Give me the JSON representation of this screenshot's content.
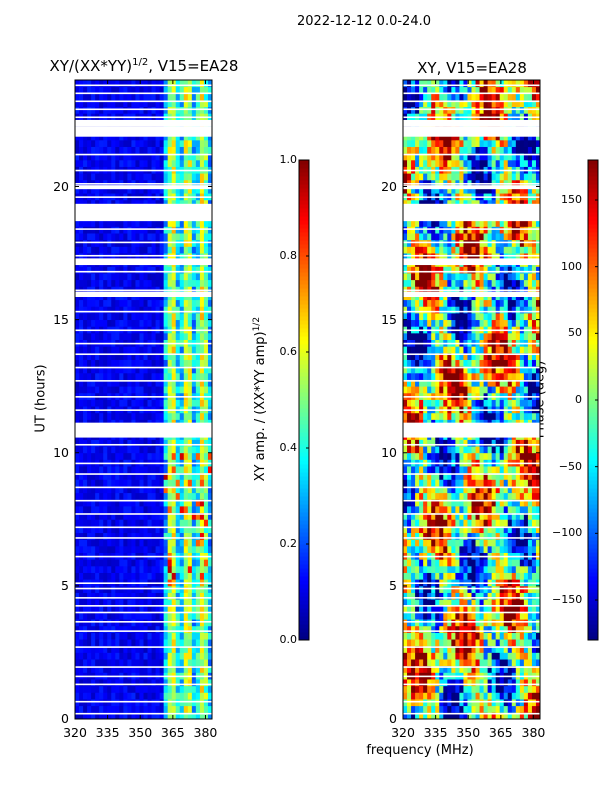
{
  "figure": {
    "suptitle": "2022-12-12 0.0-24.0",
    "xlabel_shared": "frequency (MHz)"
  },
  "chart_data": [
    {
      "type": "heatmap",
      "title": "XY/(XX*YY)",
      "title_exponent": "1/2",
      "title_suffix": ", V15=EA28",
      "xlabel": "",
      "ylabel": "UT (hours)",
      "x_ticks": [
        "320",
        "335",
        "350",
        "365",
        "380"
      ],
      "x_tick_values": [
        320,
        335,
        350,
        365,
        380
      ],
      "y_ticks": [
        "0",
        "5",
        "10",
        "15",
        "20"
      ],
      "y_tick_values": [
        0,
        5,
        10,
        15,
        20
      ],
      "xlim": [
        320,
        383
      ],
      "ylim": [
        0,
        24
      ],
      "colormap": "jet",
      "colorbar": {
        "label": "XY amp. / (XX*YY amp)",
        "label_exponent": "1/2",
        "range": [
          0.0,
          1.0
        ],
        "ticks": [
          "0.0",
          "0.2",
          "0.4",
          "0.6",
          "0.8",
          "1.0"
        ],
        "tick_values": [
          0.0,
          0.2,
          0.4,
          0.6,
          0.8,
          1.0
        ]
      }
    },
    {
      "type": "heatmap",
      "title": "XY, V15=EA28",
      "xlabel": "frequency (MHz)",
      "ylabel": "",
      "x_ticks": [
        "320",
        "335",
        "350",
        "365",
        "380"
      ],
      "x_tick_values": [
        320,
        335,
        350,
        365,
        380
      ],
      "y_ticks": [
        "0",
        "5",
        "10",
        "15",
        "20"
      ],
      "y_tick_values": [
        0,
        5,
        10,
        15,
        20
      ],
      "xlim": [
        320,
        383
      ],
      "ylim": [
        0,
        24
      ],
      "colormap": "jet",
      "colorbar": {
        "label": "Phase (deg)",
        "range": [
          -180,
          180
        ],
        "ticks": [
          "−150",
          "−100",
          "−50",
          "0",
          "50",
          "100",
          "150"
        ],
        "tick_values": [
          -150,
          -100,
          -50,
          0,
          50,
          100,
          150
        ]
      }
    }
  ]
}
